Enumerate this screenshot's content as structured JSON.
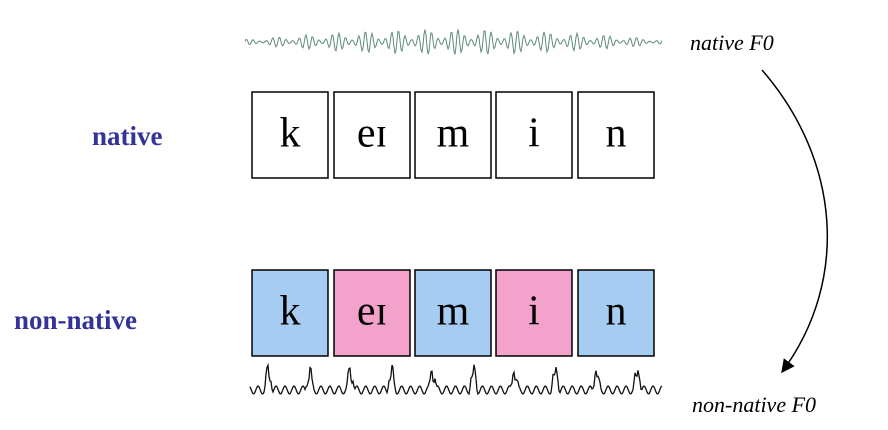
{
  "native_f0": "native F0",
  "rows": [
    {
      "label": "native",
      "segments": [
        "k",
        "eɪ",
        "m",
        "i",
        "n"
      ]
    },
    {
      "label": "non-native",
      "segments": [
        "k",
        "eɪ",
        "m",
        "i",
        "n"
      ]
    }
  ],
  "non_native_f0": "non-native F0"
}
